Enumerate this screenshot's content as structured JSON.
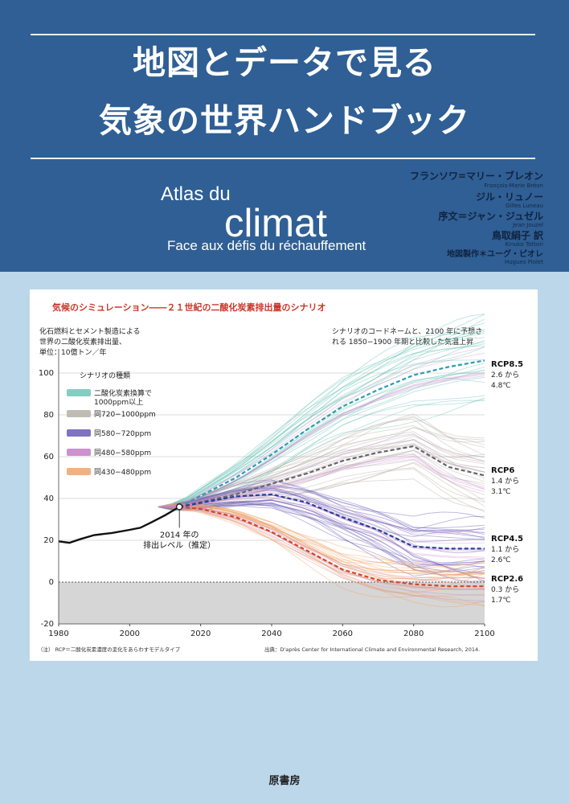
{
  "cover": {
    "title_line1": "地図とデータで見る",
    "title_line2": "気象の世界ハンドブック",
    "atlas_du": "Atlas du",
    "climat": "climat",
    "subtitle_fr": "Face aux défis du réchauffement",
    "authors": [
      {
        "jp": "フランソワ=マリー・ブレオン",
        "latin": "François-Marie Bréon"
      },
      {
        "jp": "ジル・リュノー",
        "latin": "Gilles Luneau"
      },
      {
        "jp": "序文＝ジャン・ジュゼル",
        "latin": "Jean Jouzel"
      },
      {
        "jp": "鳥取絹子 訳",
        "latin": "Kinuko Tottori"
      },
      {
        "jp": "地図製作＊ユーグ・ピオレ",
        "latin": "Hugues Piolet"
      }
    ],
    "publisher": "原書房"
  },
  "chart_data": {
    "type": "line",
    "title": "気候のシミュレーション――２１世紀の二酸化炭素排出量のシナリオ",
    "ylabel_lines": [
      "化石燃料とセメント製造による",
      "世界の二酸化炭素排出量、",
      "単位：10億トン／年"
    ],
    "right_note_lines": [
      "シナリオのコードネームと、2100 年に予想さ",
      "れる 1850−1900 年期と比較した気温上昇"
    ],
    "xlim": [
      1980,
      2100
    ],
    "ylim": [
      -20,
      110
    ],
    "x_ticks": [
      1980,
      2000,
      2020,
      2040,
      2060,
      2080,
      2100
    ],
    "y_ticks": [
      -20,
      0,
      20,
      40,
      60,
      80,
      100
    ],
    "legend": {
      "title": "シナリオの種類",
      "items": [
        {
          "label": "二酸化炭素換算で 1000ppm 以上",
          "line1": "二酸化炭素換算で",
          "line2": "1000ppm以上",
          "color": "#6fc4b9"
        },
        {
          "label": "同720−1000ppm",
          "color": "#b5b0a8"
        },
        {
          "label": "同580−720ppm",
          "color": "#6a5bb5"
        },
        {
          "label": "同480−580ppm",
          "color": "#c47ec7"
        },
        {
          "label": "同430−480ppm",
          "color": "#f0a36a"
        }
      ]
    },
    "historical": {
      "name": "",
      "color": "#111111",
      "x": [
        1980,
        1983,
        1986,
        1990,
        1995,
        2000,
        2003,
        2006,
        2010,
        2014
      ],
      "y": [
        19.5,
        18.8,
        20.5,
        22.5,
        23.5,
        25,
        26,
        28.5,
        32,
        36
      ]
    },
    "marker": {
      "x": 2014,
      "y": 36,
      "label_lines": [
        "2014 年の",
        "排出レベル（推定）"
      ]
    },
    "series": [
      {
        "id": "rcp85",
        "label": "RCP8.5",
        "range_lines": [
          "2.6 から",
          "4.8℃"
        ],
        "color": "#2a9bb0",
        "x": [
          2014,
          2030,
          2040,
          2050,
          2060,
          2070,
          2080,
          2090,
          2100
        ],
        "y": [
          36,
          50,
          61,
          73,
          84,
          92,
          99,
          103,
          106
        ]
      },
      {
        "id": "rcp6",
        "label": "RCP6",
        "range_lines": [
          "1.4 から",
          "3.1℃"
        ],
        "color": "#666666",
        "x": [
          2014,
          2030,
          2040,
          2050,
          2060,
          2070,
          2080,
          2090,
          2100
        ],
        "y": [
          36,
          42,
          47,
          52,
          58,
          62,
          65,
          55,
          51
        ]
      },
      {
        "id": "rcp45",
        "label": "RCP4.5",
        "range_lines": [
          "1.1 から",
          "2.6℃"
        ],
        "color": "#2a3f9a",
        "x": [
          2014,
          2030,
          2040,
          2050,
          2060,
          2070,
          2080,
          2090,
          2100
        ],
        "y": [
          36,
          41,
          42,
          38,
          31,
          25,
          17,
          16,
          16
        ]
      },
      {
        "id": "rcp26",
        "label": "RCP2.6",
        "range_lines": [
          "0.3 から",
          "1.7℃"
        ],
        "color": "#d2452c",
        "x": [
          2014,
          2020,
          2030,
          2040,
          2050,
          2060,
          2070,
          2080,
          2090,
          2100
        ],
        "y": [
          36,
          35,
          31,
          24,
          15,
          6,
          1,
          -1,
          -2,
          -2
        ]
      }
    ],
    "footnote_left": "（注） RCP＝二酸化炭素濃度の変化をあらわすモデルタイプ",
    "footnote_right": "出典：D'après Center for International Climate and Environmental Research, 2014."
  }
}
